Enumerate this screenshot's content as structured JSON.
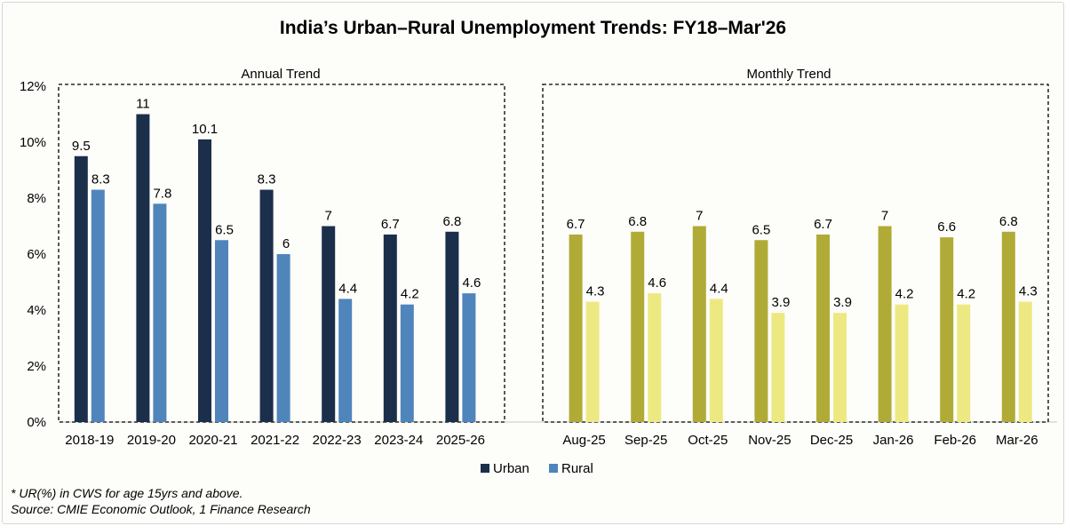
{
  "chart_data": [
    {
      "type": "bar",
      "panel_title": "Annual Trend",
      "categories": [
        "2018-19",
        "2019-20",
        "2020-21",
        "2021-22",
        "2022-23",
        "2023-24",
        "2025-26"
      ],
      "series": [
        {
          "name": "Urban",
          "color": "#1c2f4a",
          "values": [
            9.5,
            11,
            10.1,
            8.3,
            7,
            6.7,
            6.8
          ]
        },
        {
          "name": "Rural",
          "color": "#4f85bb",
          "values": [
            8.3,
            7.8,
            6.5,
            6,
            4.4,
            4.2,
            4.6
          ]
        }
      ]
    },
    {
      "type": "bar",
      "panel_title": "Monthly Trend",
      "categories": [
        "Aug-25",
        "Sep-25",
        "Oct-25",
        "Nov-25",
        "Dec-25",
        "Jan-26",
        "Feb-26",
        "Mar-26"
      ],
      "series": [
        {
          "name": "Urban",
          "color": "#b0ab36",
          "values": [
            6.7,
            6.8,
            7,
            6.5,
            6.7,
            7,
            6.6,
            6.8
          ]
        },
        {
          "name": "Rural",
          "color": "#ede982",
          "values": [
            4.3,
            4.6,
            4.4,
            3.9,
            3.9,
            4.2,
            4.2,
            4.3
          ]
        }
      ]
    }
  ],
  "title": "India’s Urban–Rural Unemployment Trends: FY18–Mar'26",
  "y_axis": {
    "ticks": [
      0,
      2,
      4,
      6,
      8,
      10,
      12
    ],
    "tick_labels": [
      "0%",
      "2%",
      "4%",
      "6%",
      "8%",
      "10%",
      "12%"
    ],
    "ylim": [
      0,
      12
    ]
  },
  "legend": {
    "placement": "bottom-center",
    "items": [
      {
        "label": "Urban",
        "color": "#1c2f4a"
      },
      {
        "label": "Rural",
        "color": "#4f85bb"
      }
    ]
  },
  "footnotes": [
    "* UR(%) in CWS for age 15yrs and above.",
    "Source: CMIE Economic Outlook, 1 Finance Research"
  ]
}
